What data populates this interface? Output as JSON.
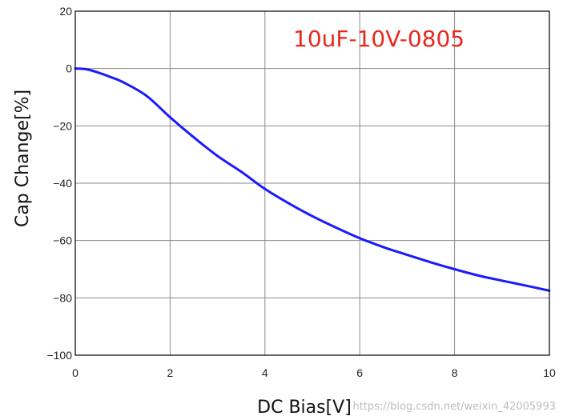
{
  "chart_data": {
    "type": "line",
    "title": "",
    "annotation": "10uF-10V-0805",
    "xlabel": "DC Bias[V]",
    "ylabel": "Cap Change[%]",
    "xlim": [
      0,
      10
    ],
    "ylim": [
      -100,
      20
    ],
    "xticks": [
      0,
      2,
      4,
      6,
      8,
      10
    ],
    "yticks": [
      20,
      0,
      -20,
      -40,
      -60,
      -80,
      -100
    ],
    "grid": true,
    "series": [
      {
        "color": "#1a1aff",
        "x": [
          0,
          0.25,
          0.5,
          0.75,
          1,
          1.5,
          2,
          2.5,
          3,
          3.5,
          4,
          4.5,
          5,
          5.5,
          6,
          6.5,
          7,
          7.5,
          8,
          8.5,
          9,
          9.5,
          10
        ],
        "y": [
          0,
          -0.3,
          -1.5,
          -3,
          -4.7,
          -9.5,
          -17,
          -24,
          -30.5,
          -36,
          -42,
          -47,
          -51.5,
          -55.5,
          -59.2,
          -62.3,
          -65,
          -67.6,
          -70,
          -72.2,
          -74,
          -75.7,
          -77.5
        ]
      }
    ],
    "annotation_color": "#e8281e"
  },
  "watermark": "https://blog.csdn.net/weixin_42005993"
}
